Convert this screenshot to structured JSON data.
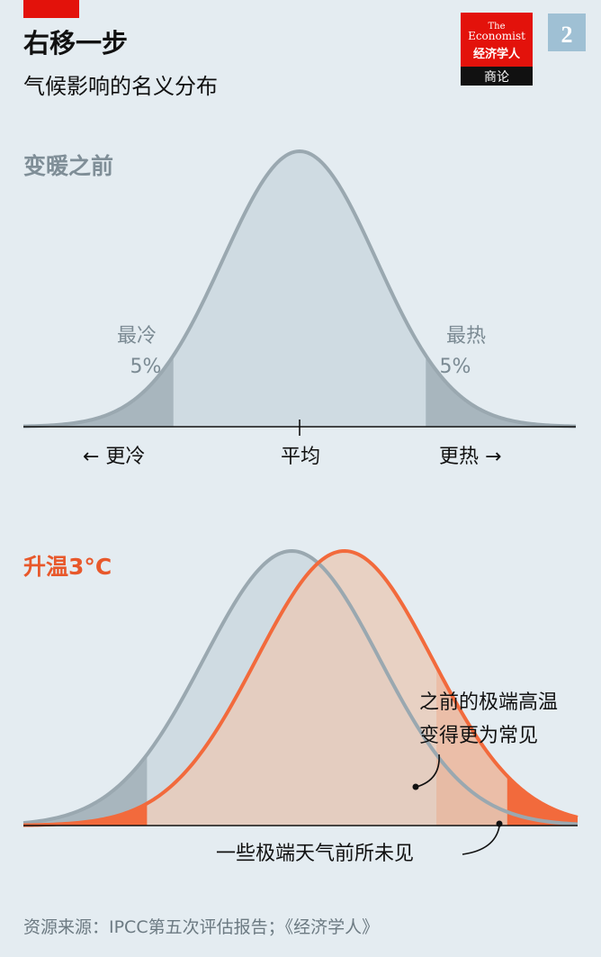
{
  "header": {
    "title": "右移一步",
    "subtitle": "气候影响的名义分布",
    "brand_line1": "The",
    "brand_line2": "Economist",
    "brand_cn": "经济学人",
    "brand_sub": "商论",
    "page_number": "2"
  },
  "colors": {
    "accent_red": "#e3120b",
    "gray_curve": "#9aa8b0",
    "gray_fill": "#cfdbe2",
    "gray_tail": "#a8b6be",
    "orange_curve": "#f26a3c",
    "orange_fill": "#e9c9b6",
    "orange_tail": "#f26a3c",
    "badge": "#9fc0d4"
  },
  "chart_data": [
    {
      "type": "area",
      "title": "变暖之前",
      "distribution": "normal",
      "series": [
        {
          "name": "变暖之前",
          "mean": 0,
          "sd": 1
        }
      ],
      "xlim": [
        -3.6,
        3.6
      ],
      "tails": {
        "cold_percent": 5,
        "hot_percent": 5,
        "threshold": 1.645
      },
      "tail_labels": {
        "cold": "最冷",
        "cold_value": "5%",
        "hot": "最热",
        "hot_value": "5%"
      },
      "axis": {
        "left": "← 更冷",
        "center": "平均",
        "right": "更热 →"
      },
      "grid": false
    },
    {
      "type": "area",
      "title": "升温3°C",
      "distribution": "normal",
      "series": [
        {
          "mean": 0,
          "sd": 1
        },
        {
          "mean": 0.6,
          "sd": 1
        }
      ],
      "xlim": [
        -3.05,
        3.25
      ],
      "tails": {
        "threshold_low": -1.645,
        "threshold_high": 1.645,
        "threshold_extreme": 2.45
      },
      "annotations": [
        "之前的极端高温",
        "变得更为常见",
        "一些极端天气前所未见"
      ],
      "grid": false
    }
  ],
  "footer": {
    "source": "资源来源：IPCC第五次评估报告；《经济学人》"
  }
}
